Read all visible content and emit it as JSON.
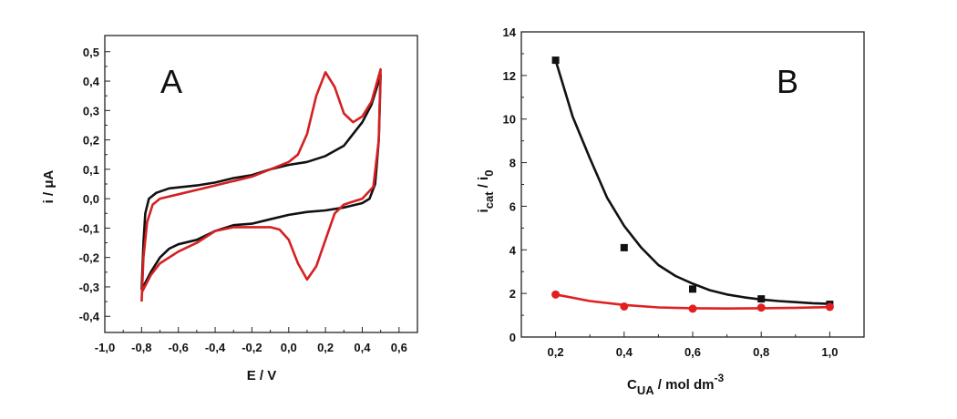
{
  "chart_data": [
    {
      "type": "line",
      "panel_label": "A",
      "xlabel": "E / V",
      "ylabel": "i / μA",
      "xlim": [
        -1.0,
        0.7
      ],
      "ylim": [
        -0.455,
        0.555
      ],
      "xticks": [
        -1.0,
        -0.8,
        -0.6,
        -0.4,
        -0.2,
        0.0,
        0.2,
        0.4,
        0.6
      ],
      "xtick_labels": [
        "-1,0",
        "-0,8",
        "-0,6",
        "-0,4",
        "-0,2",
        "0,0",
        "0,2",
        "0,4",
        "0,6"
      ],
      "yticks": [
        -0.4,
        -0.3,
        -0.2,
        -0.1,
        0.0,
        0.1,
        0.2,
        0.3,
        0.4,
        0.5
      ],
      "ytick_labels": [
        "-0,4",
        "-0,3",
        "-0,2",
        "-0,1",
        "0,0",
        "0,1",
        "0,2",
        "0,3",
        "0,4",
        "0,5"
      ],
      "grid": false,
      "series": [
        {
          "color": "#111111",
          "x": [
            -0.8,
            -0.79,
            -0.78,
            -0.76,
            -0.72,
            -0.65,
            -0.5,
            -0.4,
            -0.3,
            -0.2,
            -0.1,
            0.0,
            0.1,
            0.2,
            0.3,
            0.4,
            0.45,
            0.5,
            0.49,
            0.47,
            0.44,
            0.4,
            0.3,
            0.2,
            0.1,
            0.0,
            -0.1,
            -0.2,
            -0.3,
            -0.4,
            -0.5,
            -0.6,
            -0.65,
            -0.7,
            -0.75,
            -0.8
          ],
          "y": [
            -0.31,
            -0.15,
            -0.05,
            0.0,
            0.02,
            0.035,
            0.045,
            0.055,
            0.07,
            0.08,
            0.1,
            0.115,
            0.125,
            0.145,
            0.18,
            0.26,
            0.32,
            0.42,
            0.2,
            0.05,
            0.0,
            -0.015,
            -0.03,
            -0.04,
            -0.045,
            -0.055,
            -0.07,
            -0.085,
            -0.09,
            -0.11,
            -0.14,
            -0.155,
            -0.17,
            -0.2,
            -0.25,
            -0.31
          ]
        },
        {
          "color": "#d42020",
          "x": [
            -0.8,
            -0.79,
            -0.77,
            -0.74,
            -0.7,
            -0.6,
            -0.5,
            -0.4,
            -0.3,
            -0.2,
            -0.1,
            0.0,
            0.05,
            0.1,
            0.15,
            0.2,
            0.25,
            0.3,
            0.35,
            0.4,
            0.45,
            0.5,
            0.49,
            0.46,
            0.4,
            0.3,
            0.25,
            0.2,
            0.15,
            0.1,
            0.05,
            0.0,
            -0.05,
            -0.1,
            -0.2,
            -0.3,
            -0.4,
            -0.5,
            -0.6,
            -0.7,
            -0.75,
            -0.8
          ],
          "y": [
            -0.35,
            -0.2,
            -0.08,
            -0.02,
            0.0,
            0.015,
            0.03,
            0.045,
            0.06,
            0.075,
            0.1,
            0.125,
            0.15,
            0.22,
            0.35,
            0.43,
            0.38,
            0.29,
            0.26,
            0.28,
            0.33,
            0.44,
            0.2,
            0.04,
            0.0,
            -0.02,
            -0.05,
            -0.14,
            -0.23,
            -0.275,
            -0.22,
            -0.14,
            -0.105,
            -0.097,
            -0.097,
            -0.097,
            -0.11,
            -0.15,
            -0.18,
            -0.22,
            -0.26,
            -0.32
          ]
        }
      ]
    },
    {
      "type": "scatter",
      "panel_label": "B",
      "xlabel_main": "C",
      "xlabel_sub": "UA",
      "xlabel_rest": " / mol dm",
      "xlabel_sup": "-3",
      "ylabel_main": "i",
      "ylabel_sub1": "cat",
      "ylabel_mid": " / i",
      "ylabel_sub2": "0",
      "xlim": [
        0.1,
        1.1
      ],
      "ylim": [
        0,
        14
      ],
      "xticks": [
        0.2,
        0.4,
        0.6,
        0.8,
        1.0
      ],
      "xtick_labels": [
        "0,2",
        "0,4",
        "0,6",
        "0,8",
        "1,0"
      ],
      "yticks": [
        0,
        2,
        4,
        6,
        8,
        10,
        12,
        14
      ],
      "ytick_labels": [
        "0",
        "2",
        "4",
        "6",
        "8",
        "10",
        "12",
        "14"
      ],
      "grid": false,
      "series": [
        {
          "color": "#111111",
          "marker": "square",
          "x": [
            0.2,
            0.4,
            0.6,
            0.8,
            1.0
          ],
          "y": [
            12.7,
            4.1,
            2.2,
            1.75,
            1.5
          ],
          "fit": {
            "x": [
              0.2,
              0.25,
              0.3,
              0.35,
              0.4,
              0.45,
              0.5,
              0.55,
              0.6,
              0.65,
              0.7,
              0.75,
              0.8,
              0.85,
              0.9,
              0.95,
              1.0
            ],
            "y": [
              12.7,
              10.1,
              8.2,
              6.4,
              5.1,
              4.1,
              3.3,
              2.8,
              2.45,
              2.15,
              1.95,
              1.82,
              1.72,
              1.65,
              1.6,
              1.55,
              1.52
            ]
          }
        },
        {
          "color": "#e02020",
          "marker": "circle",
          "x": [
            0.2,
            0.4,
            0.6,
            0.8,
            1.0
          ],
          "y": [
            1.95,
            1.4,
            1.3,
            1.35,
            1.38
          ],
          "fit": {
            "x": [
              0.2,
              0.3,
              0.4,
              0.5,
              0.6,
              0.7,
              0.8,
              0.9,
              1.0
            ],
            "y": [
              1.95,
              1.65,
              1.47,
              1.36,
              1.32,
              1.31,
              1.32,
              1.34,
              1.37
            ]
          }
        }
      ]
    }
  ]
}
